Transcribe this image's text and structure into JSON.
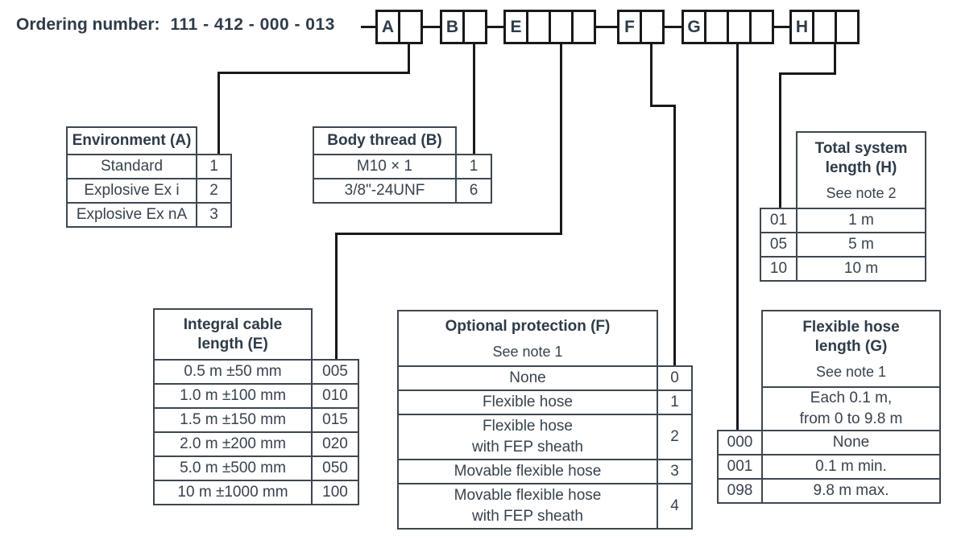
{
  "header": {
    "label": "Ordering number:",
    "number": "111 - 412 - 000 - 013"
  },
  "colors": {
    "text": "#37424e",
    "heading_text": "#2e3b48",
    "table_border": "#3d4751",
    "connector_line": "#17191c",
    "background": "#ffffff"
  },
  "code_boxes": [
    {
      "letter": "A",
      "blanks": 1
    },
    {
      "letter": "B",
      "blanks": 1
    },
    {
      "letter": "E",
      "blanks": 3
    },
    {
      "letter": "F",
      "blanks": 1
    },
    {
      "letter": "G",
      "blanks": 3
    },
    {
      "letter": "H",
      "blanks": 2
    }
  ],
  "tables": {
    "environment": {
      "title": "Environment (A)",
      "rows": [
        {
          "label": "Standard",
          "code": "1"
        },
        {
          "label": "Explosive Ex i",
          "code": "2"
        },
        {
          "label": "Explosive Ex nA",
          "code": "3"
        }
      ]
    },
    "body_thread": {
      "title": "Body thread (B)",
      "rows": [
        {
          "label": "M10 × 1",
          "code": "1"
        },
        {
          "label": "3/8\"-24UNF",
          "code": "6"
        }
      ]
    },
    "total_system_length": {
      "title": "Total system\nlength (H)",
      "note": "See note 2",
      "rows": [
        {
          "code": "01",
          "label": "1 m"
        },
        {
          "code": "05",
          "label": "5 m"
        },
        {
          "code": "10",
          "label": "10 m"
        }
      ]
    },
    "integral_cable_length": {
      "title": "Integral cable\nlength (E)",
      "rows": [
        {
          "label": "0.5 m ±50 mm",
          "code": "005"
        },
        {
          "label": "1.0 m ±100 mm",
          "code": "010"
        },
        {
          "label": "1.5 m ±150 mm",
          "code": "015"
        },
        {
          "label": "2.0 m ±200 mm",
          "code": "020"
        },
        {
          "label": "5.0 m ±500 mm",
          "code": "050"
        },
        {
          "label": "10 m ±1000 mm",
          "code": "100"
        }
      ]
    },
    "optional_protection": {
      "title": "Optional protection (F)",
      "note": "See note 1",
      "rows": [
        {
          "label": "None",
          "code": "0"
        },
        {
          "label": "Flexible hose",
          "code": "1"
        },
        {
          "label": "Flexible hose\nwith FEP sheath",
          "code": "2"
        },
        {
          "label": "Movable flexible hose",
          "code": "3"
        },
        {
          "label": "Movable flexible hose\nwith FEP sheath",
          "code": "4"
        }
      ]
    },
    "flexible_hose_length": {
      "title": "Flexible hose\nlength (G)",
      "note": "See note 1",
      "subnote": "Each 0.1 m,\nfrom 0 to 9.8 m",
      "rows": [
        {
          "code": "000",
          "label": "None"
        },
        {
          "code": "001",
          "label": "0.1 m min."
        },
        {
          "code": "098",
          "label": "9.8 m max."
        }
      ]
    }
  }
}
